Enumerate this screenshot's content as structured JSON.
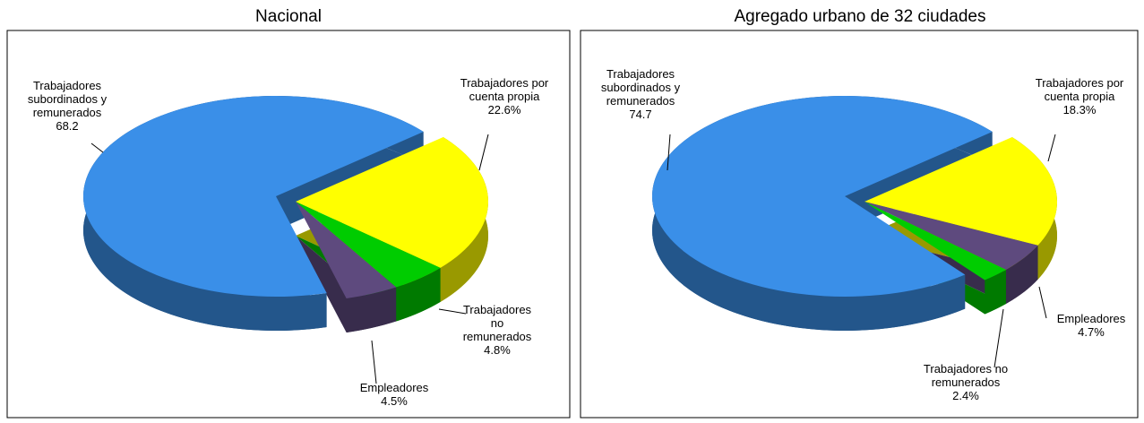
{
  "chart_data": [
    {
      "type": "pie",
      "title": "Nacional",
      "categories": [
        "Trabajadores por cuenta propia",
        "Trabajadores no remunerados",
        "Empleadores",
        "Trabajadores subordinados y remunerados"
      ],
      "values": [
        22.6,
        4.8,
        4.5,
        68.2
      ],
      "value_labels": [
        "22.6%",
        "4.8%",
        "4.5%",
        "68.2"
      ],
      "colors": [
        "#ffff00",
        "#00cc00",
        "#5e4a7e",
        "#3a8fe8"
      ]
    },
    {
      "type": "pie",
      "title": "Agregado  urbano  de 32 ciudades",
      "categories": [
        "Trabajadores por cuenta propia",
        "Empleadores",
        "Trabajadores no remunerados",
        "Trabajadores subordinados y remunerados"
      ],
      "values": [
        18.3,
        4.7,
        2.4,
        74.7
      ],
      "value_labels": [
        "18.3%",
        "4.7%",
        "2.4%",
        "74.7"
      ],
      "colors": [
        "#ffff00",
        "#5e4a7e",
        "#00cc00",
        "#3a8fe8"
      ]
    }
  ]
}
